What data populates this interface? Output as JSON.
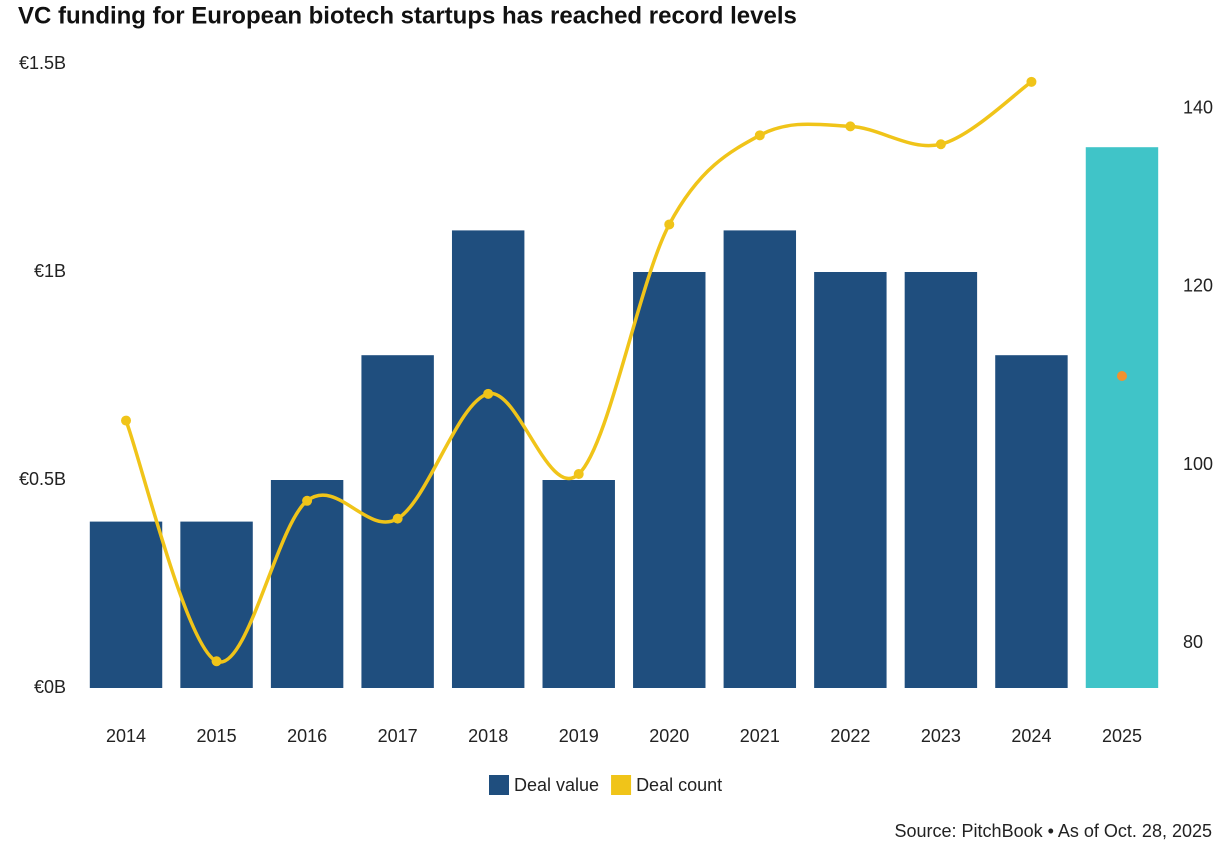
{
  "chart_data": {
    "type": "bar_line",
    "title": "VC funding for European biotech startups has reached record levels",
    "source": "Source: PitchBook • As of Oct. 28, 2025",
    "categories": [
      "2014",
      "2015",
      "2016",
      "2017",
      "2018",
      "2019",
      "2020",
      "2021",
      "2022",
      "2023",
      "2024",
      "2025"
    ],
    "series": [
      {
        "name": "Deal value",
        "type": "bar",
        "color": "#1f4e7e",
        "bar_colors": [
          "#1f4e7e",
          "#1f4e7e",
          "#1f4e7e",
          "#1f4e7e",
          "#1f4e7e",
          "#1f4e7e",
          "#1f4e7e",
          "#1f4e7e",
          "#1f4e7e",
          "#1f4e7e",
          "#1f4e7e",
          "#40c4c8"
        ],
        "values": [
          0.4,
          0.4,
          0.5,
          0.8,
          1.1,
          0.5,
          1.0,
          1.1,
          1.0,
          1.0,
          0.8,
          1.3
        ]
      },
      {
        "name": "Deal count",
        "type": "line",
        "color": "#f0c419",
        "axis": "y2",
        "values": [
          105,
          78,
          96,
          94,
          108,
          99,
          127,
          137,
          138,
          136,
          143,
          null
        ]
      },
      {
        "type": "marker",
        "color": "#f0922e",
        "axis": "y2",
        "values": [
          null,
          null,
          null,
          null,
          null,
          null,
          null,
          null,
          null,
          null,
          null,
          110
        ]
      }
    ],
    "ylim": [
      0,
      1.5
    ],
    "yticks": [
      {
        "value": 0,
        "label": "€0B"
      },
      {
        "value": 0.5,
        "label": "€0.5B"
      },
      {
        "value": 1,
        "label": "€1B"
      },
      {
        "value": 1.5,
        "label": "€1.5B"
      }
    ],
    "y2lim": [
      75,
      145
    ],
    "y2ticks": [
      80,
      100,
      120,
      140
    ]
  }
}
